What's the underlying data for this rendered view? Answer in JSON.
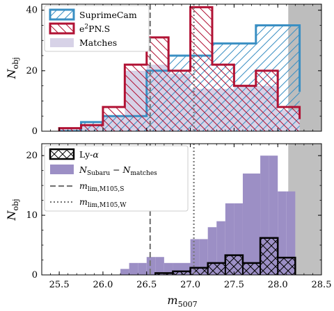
{
  "chart_data": [
    {
      "type": "bar",
      "panel": "top",
      "xlabel": "",
      "ylabel": "N_obj",
      "ylabel_main": "N",
      "ylabel_sub": "obj",
      "xlim": [
        25.3,
        28.5
      ],
      "ylim": [
        0,
        42
      ],
      "yticks": [
        0,
        20,
        40
      ],
      "xticks": [
        25.5,
        26.0,
        26.5,
        27.0,
        27.5,
        28.0,
        28.5
      ],
      "xticklabels": [
        "",
        "",
        "",
        "",
        "",
        "",
        ""
      ],
      "bin_edges": [
        25.5,
        25.75,
        26.0,
        26.25,
        26.5,
        26.75,
        27.0,
        27.25,
        27.5,
        27.75,
        28.0,
        28.25
      ],
      "series": [
        {
          "name": "SuprimeCam",
          "label_main": "SuprimeCam",
          "label_sup": "",
          "label_rest": "",
          "style": "step-hatch-diag-up",
          "color": "#3a8fc3",
          "values": [
            0,
            3,
            5,
            5,
            20,
            25,
            25,
            29,
            29,
            35,
            35,
            13
          ]
        },
        {
          "name": "e²PN.S",
          "label_main": "e",
          "label_sup": "2",
          "label_rest": "PN.S",
          "style": "step-hatch-diag-down",
          "color": "#b11234",
          "values": [
            1,
            2,
            8,
            22,
            31,
            20,
            41,
            22,
            15,
            20,
            8,
            4
          ]
        },
        {
          "name": "Matches",
          "label_main": "Matches",
          "label_sup": "",
          "label_rest": "",
          "style": "filled",
          "color": "#d7d2e7",
          "values": [
            1,
            2,
            5,
            20,
            22,
            19,
            14,
            14,
            15,
            15,
            7,
            3
          ]
        }
      ],
      "grey_region_start": 28.12,
      "vlines": [
        {
          "x": 26.54,
          "style": "dashed",
          "color": "#777777"
        },
        {
          "x": 27.04,
          "style": "dotted",
          "color": "#777777"
        }
      ],
      "legend_position": "top-left"
    },
    {
      "type": "bar",
      "panel": "bottom",
      "xlabel": "m_5007",
      "xlabel_main": "m",
      "xlabel_sub": "5007",
      "ylabel": "N_obj",
      "ylabel_main": "N",
      "ylabel_sub": "obj",
      "xlim": [
        25.3,
        28.5
      ],
      "ylim": [
        0,
        22
      ],
      "yticks": [
        0,
        10,
        20
      ],
      "xticks": [
        25.5,
        26.0,
        26.5,
        27.0,
        27.5,
        28.0,
        28.5
      ],
      "xticklabels": [
        "25.5",
        "26.0",
        "26.5",
        "27.0",
        "27.5",
        "28.0",
        "28.5"
      ],
      "series": [
        {
          "name": "N_Subaru − N_matches",
          "style": "filled",
          "color": "#9c8fc5",
          "bin_edges": [
            26.2,
            26.3,
            26.4,
            26.5,
            26.6,
            26.7,
            26.8,
            26.9,
            27.0,
            27.1,
            27.2,
            27.3,
            27.4,
            27.5,
            27.6,
            27.7,
            27.8,
            27.9,
            28.0,
            28.1,
            28.2
          ],
          "values": [
            1,
            2,
            2,
            3,
            3,
            2,
            2,
            2,
            6,
            6,
            8,
            9,
            12,
            12,
            17,
            17,
            20,
            20,
            14,
            14
          ]
        },
        {
          "name": "Ly-α",
          "style": "step-crosshatch",
          "color": "#000000",
          "bin_edges": [
            26.6,
            26.8,
            27.0,
            27.2,
            27.4,
            27.6,
            27.8,
            28.0,
            28.2
          ],
          "values": [
            0.3,
            0.6,
            1.2,
            2,
            3.3,
            2,
            6.2,
            2.9
          ]
        }
      ],
      "grey_region_start": 28.12,
      "vlines": [
        {
          "x": 26.54,
          "style": "dashed",
          "color": "#777777"
        },
        {
          "x": 27.04,
          "style": "dotted",
          "color": "#777777"
        }
      ],
      "legend_position": "top-left"
    }
  ],
  "legend_bottom": {
    "lya": {
      "main": "Ly-",
      "greek": "α"
    },
    "subaru": {
      "n1": "N",
      "s1": "Subaru",
      "minus": " − ",
      "n2": "N",
      "s2": "matches"
    },
    "mlim_s": {
      "m": "m",
      "sub": "lim,M105,S"
    },
    "mlim_w": {
      "m": "m",
      "sub": "lim,M105,W"
    }
  }
}
